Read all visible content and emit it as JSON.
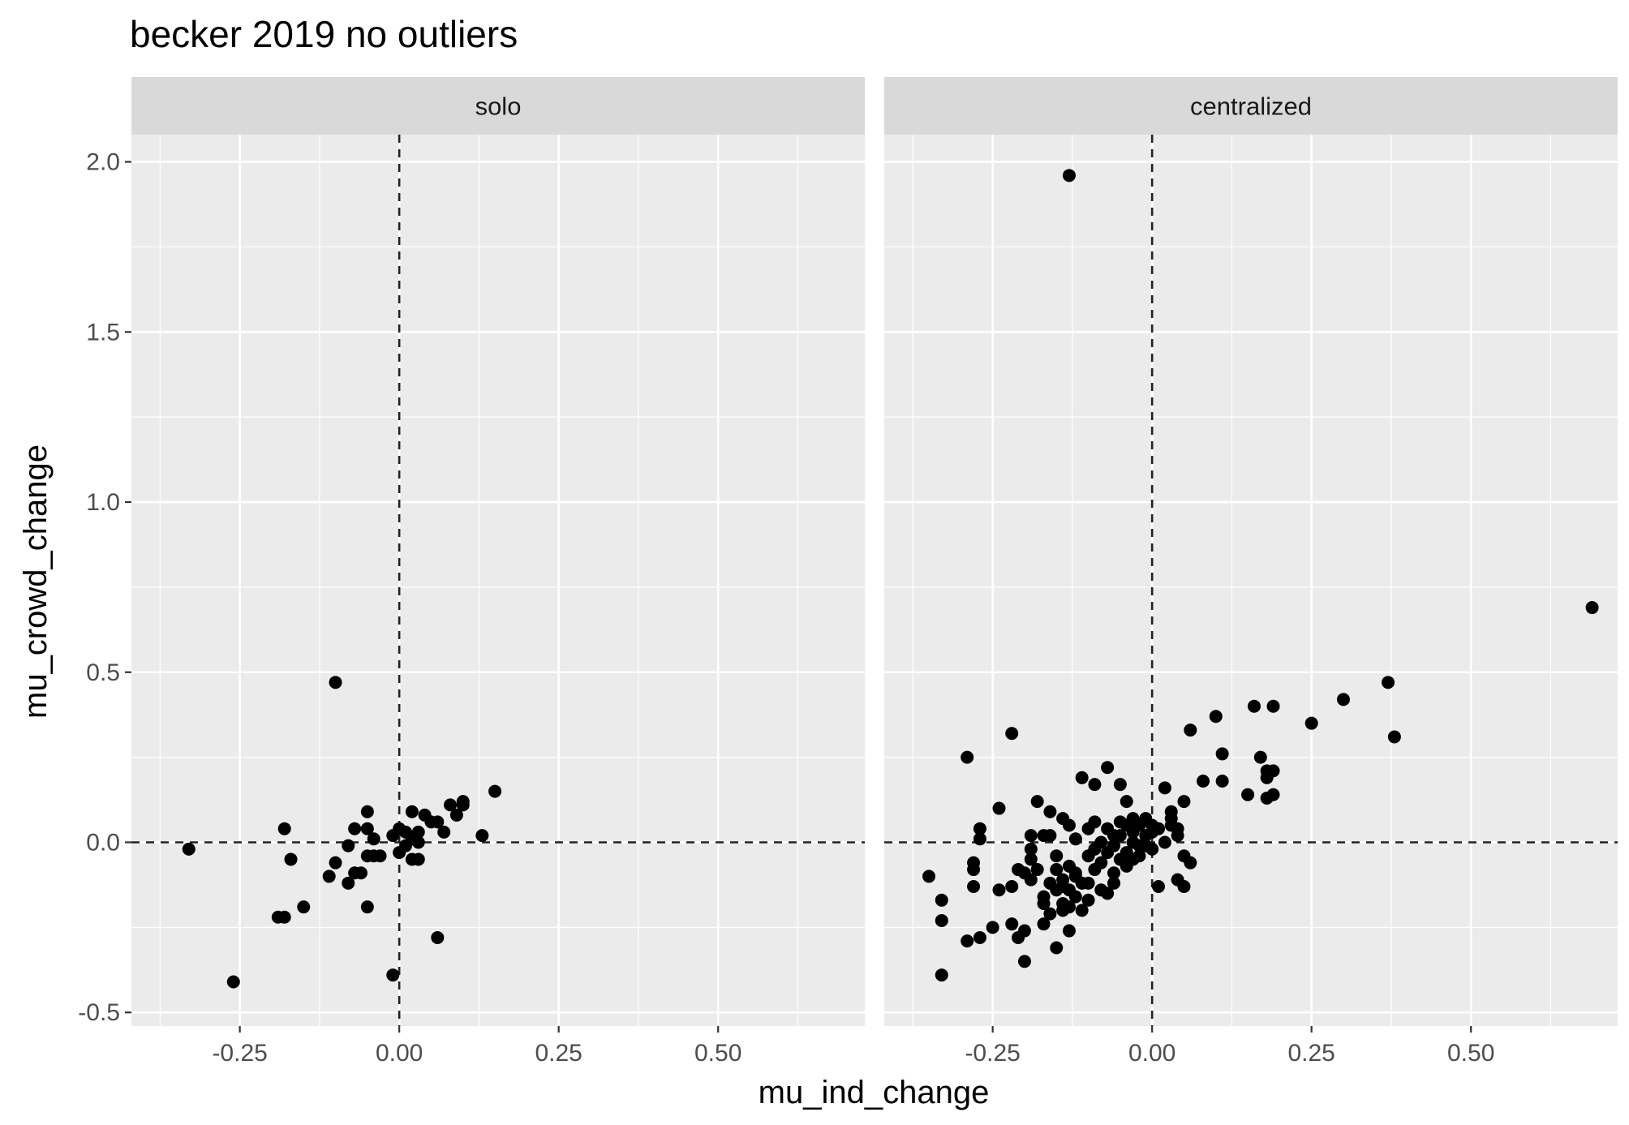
{
  "chart_data": {
    "type": "scatter",
    "title": "becker 2019 no outliers",
    "xlabel": "mu_ind_change",
    "ylabel": "mu_crowd_change",
    "xlim": [
      -0.42,
      0.73
    ],
    "ylim": [
      -0.54,
      2.08
    ],
    "x_ticks": [
      -0.25,
      0.0,
      0.25,
      0.5
    ],
    "x_tick_labels": [
      "-0.25",
      "0.00",
      "0.25",
      "0.50"
    ],
    "y_ticks": [
      -0.5,
      0.0,
      0.5,
      1.0,
      1.5,
      2.0
    ],
    "y_tick_labels": [
      "-0.5",
      "0.0",
      "0.5",
      "1.0",
      "1.5",
      "2.0"
    ],
    "reference_lines": {
      "x": 0,
      "y": 0,
      "style": "dashed"
    },
    "grid": true,
    "facets": [
      {
        "label": "solo",
        "points": [
          [
            -0.33,
            -0.02
          ],
          [
            -0.26,
            -0.41
          ],
          [
            -0.19,
            -0.22
          ],
          [
            -0.18,
            0.04
          ],
          [
            -0.18,
            -0.22
          ],
          [
            -0.17,
            -0.05
          ],
          [
            -0.15,
            -0.19
          ],
          [
            -0.1,
            0.47
          ],
          [
            -0.11,
            -0.1
          ],
          [
            -0.1,
            -0.06
          ],
          [
            -0.08,
            -0.12
          ],
          [
            -0.08,
            -0.01
          ],
          [
            -0.07,
            -0.09
          ],
          [
            -0.07,
            0.04
          ],
          [
            -0.06,
            -0.09
          ],
          [
            -0.05,
            -0.04
          ],
          [
            -0.05,
            0.09
          ],
          [
            -0.05,
            0.04
          ],
          [
            -0.05,
            -0.19
          ],
          [
            -0.04,
            -0.04
          ],
          [
            -0.04,
            0.01
          ],
          [
            -0.03,
            -0.04
          ],
          [
            -0.01,
            -0.39
          ],
          [
            -0.01,
            0.02
          ],
          [
            0.0,
            -0.03
          ],
          [
            0.0,
            0.04
          ],
          [
            0.01,
            0.03
          ],
          [
            0.01,
            -0.01
          ],
          [
            0.02,
            -0.05
          ],
          [
            0.02,
            0.01
          ],
          [
            0.02,
            0.09
          ],
          [
            0.03,
            -0.05
          ],
          [
            0.03,
            0.0
          ],
          [
            0.03,
            0.03
          ],
          [
            0.04,
            0.08
          ],
          [
            0.05,
            0.06
          ],
          [
            0.06,
            0.06
          ],
          [
            0.06,
            -0.28
          ],
          [
            0.07,
            0.03
          ],
          [
            0.08,
            0.11
          ],
          [
            0.09,
            0.08
          ],
          [
            0.1,
            0.11
          ],
          [
            0.1,
            0.12
          ],
          [
            0.13,
            0.02
          ],
          [
            0.15,
            0.15
          ]
        ]
      },
      {
        "label": "centralized",
        "points": [
          [
            -0.35,
            -0.1
          ],
          [
            -0.33,
            -0.23
          ],
          [
            -0.33,
            -0.39
          ],
          [
            -0.33,
            -0.17
          ],
          [
            -0.29,
            0.25
          ],
          [
            -0.29,
            -0.29
          ],
          [
            -0.28,
            -0.13
          ],
          [
            -0.28,
            -0.08
          ],
          [
            -0.28,
            -0.06
          ],
          [
            -0.27,
            0.01
          ],
          [
            -0.27,
            0.04
          ],
          [
            -0.27,
            -0.28
          ],
          [
            -0.25,
            -0.25
          ],
          [
            -0.24,
            0.1
          ],
          [
            -0.24,
            -0.14
          ],
          [
            -0.22,
            -0.24
          ],
          [
            -0.22,
            -0.13
          ],
          [
            -0.22,
            0.32
          ],
          [
            -0.21,
            -0.08
          ],
          [
            -0.21,
            -0.28
          ],
          [
            -0.2,
            -0.35
          ],
          [
            -0.2,
            -0.26
          ],
          [
            -0.2,
            -0.09
          ],
          [
            -0.19,
            -0.11
          ],
          [
            -0.19,
            0.02
          ],
          [
            -0.19,
            -0.02
          ],
          [
            -0.19,
            -0.05
          ],
          [
            -0.18,
            0.12
          ],
          [
            -0.18,
            -0.08
          ],
          [
            -0.17,
            -0.18
          ],
          [
            -0.17,
            0.02
          ],
          [
            -0.17,
            -0.16
          ],
          [
            -0.17,
            -0.24
          ],
          [
            -0.16,
            0.09
          ],
          [
            -0.16,
            -0.12
          ],
          [
            -0.16,
            -0.21
          ],
          [
            -0.16,
            0.02
          ],
          [
            -0.15,
            -0.04
          ],
          [
            -0.15,
            -0.08
          ],
          [
            -0.15,
            -0.31
          ],
          [
            -0.15,
            -0.14
          ],
          [
            -0.14,
            -0.11
          ],
          [
            -0.14,
            0.07
          ],
          [
            -0.14,
            -0.2
          ],
          [
            -0.14,
            -0.18
          ],
          [
            -0.14,
            -0.13
          ],
          [
            -0.13,
            0.05
          ],
          [
            -0.13,
            -0.07
          ],
          [
            -0.13,
            -0.19
          ],
          [
            -0.13,
            1.96
          ],
          [
            -0.13,
            -0.14
          ],
          [
            -0.13,
            -0.26
          ],
          [
            -0.12,
            0.01
          ],
          [
            -0.12,
            -0.09
          ],
          [
            -0.12,
            -0.16
          ],
          [
            -0.12,
            -0.1
          ],
          [
            -0.11,
            -0.12
          ],
          [
            -0.11,
            -0.2
          ],
          [
            -0.11,
            0.19
          ],
          [
            -0.1,
            0.04
          ],
          [
            -0.1,
            -0.04
          ],
          [
            -0.1,
            -0.17
          ],
          [
            -0.1,
            -0.12
          ],
          [
            -0.09,
            0.17
          ],
          [
            -0.09,
            0.06
          ],
          [
            -0.09,
            -0.08
          ],
          [
            -0.09,
            -0.02
          ],
          [
            -0.08,
            0.0
          ],
          [
            -0.08,
            -0.14
          ],
          [
            -0.08,
            -0.06
          ],
          [
            -0.07,
            0.04
          ],
          [
            -0.07,
            -0.03
          ],
          [
            -0.07,
            -0.15
          ],
          [
            -0.07,
            0.22
          ],
          [
            -0.06,
            -0.01
          ],
          [
            -0.06,
            0.02
          ],
          [
            -0.06,
            -0.09
          ],
          [
            -0.06,
            -0.12
          ],
          [
            -0.05,
            0.06
          ],
          [
            -0.05,
            -0.05
          ],
          [
            -0.05,
            0.17
          ],
          [
            -0.05,
            0.02
          ],
          [
            -0.04,
            -0.03
          ],
          [
            -0.04,
            0.12
          ],
          [
            -0.04,
            0.05
          ],
          [
            -0.04,
            -0.07
          ],
          [
            -0.03,
            0.0
          ],
          [
            -0.03,
            0.03
          ],
          [
            -0.03,
            -0.05
          ],
          [
            -0.03,
            0.07
          ],
          [
            -0.02,
            -0.01
          ],
          [
            -0.02,
            0.05
          ],
          [
            -0.02,
            -0.04
          ],
          [
            -0.01,
            0.02
          ],
          [
            -0.01,
            0.07
          ],
          [
            -0.01,
            -0.01
          ],
          [
            0.0,
            0.03
          ],
          [
            0.0,
            0.05
          ],
          [
            0.0,
            -0.02
          ],
          [
            0.01,
            0.04
          ],
          [
            0.01,
            -0.13
          ],
          [
            0.02,
            0.16
          ],
          [
            0.02,
            0.0
          ],
          [
            0.03,
            0.05
          ],
          [
            0.03,
            0.09
          ],
          [
            0.03,
            0.07
          ],
          [
            0.04,
            -0.11
          ],
          [
            0.04,
            0.02
          ],
          [
            0.04,
            0.04
          ],
          [
            0.05,
            -0.04
          ],
          [
            0.05,
            -0.13
          ],
          [
            0.05,
            0.12
          ],
          [
            0.06,
            -0.06
          ],
          [
            0.06,
            0.33
          ],
          [
            0.08,
            0.18
          ],
          [
            0.1,
            0.37
          ],
          [
            0.11,
            0.26
          ],
          [
            0.11,
            0.18
          ],
          [
            0.15,
            0.14
          ],
          [
            0.16,
            0.4
          ],
          [
            0.17,
            0.25
          ],
          [
            0.18,
            0.21
          ],
          [
            0.18,
            0.13
          ],
          [
            0.18,
            0.19
          ],
          [
            0.19,
            0.14
          ],
          [
            0.19,
            0.21
          ],
          [
            0.19,
            0.4
          ],
          [
            0.25,
            0.35
          ],
          [
            0.3,
            0.42
          ],
          [
            0.37,
            0.47
          ],
          [
            0.38,
            0.31
          ],
          [
            0.69,
            0.69
          ]
        ]
      }
    ]
  }
}
